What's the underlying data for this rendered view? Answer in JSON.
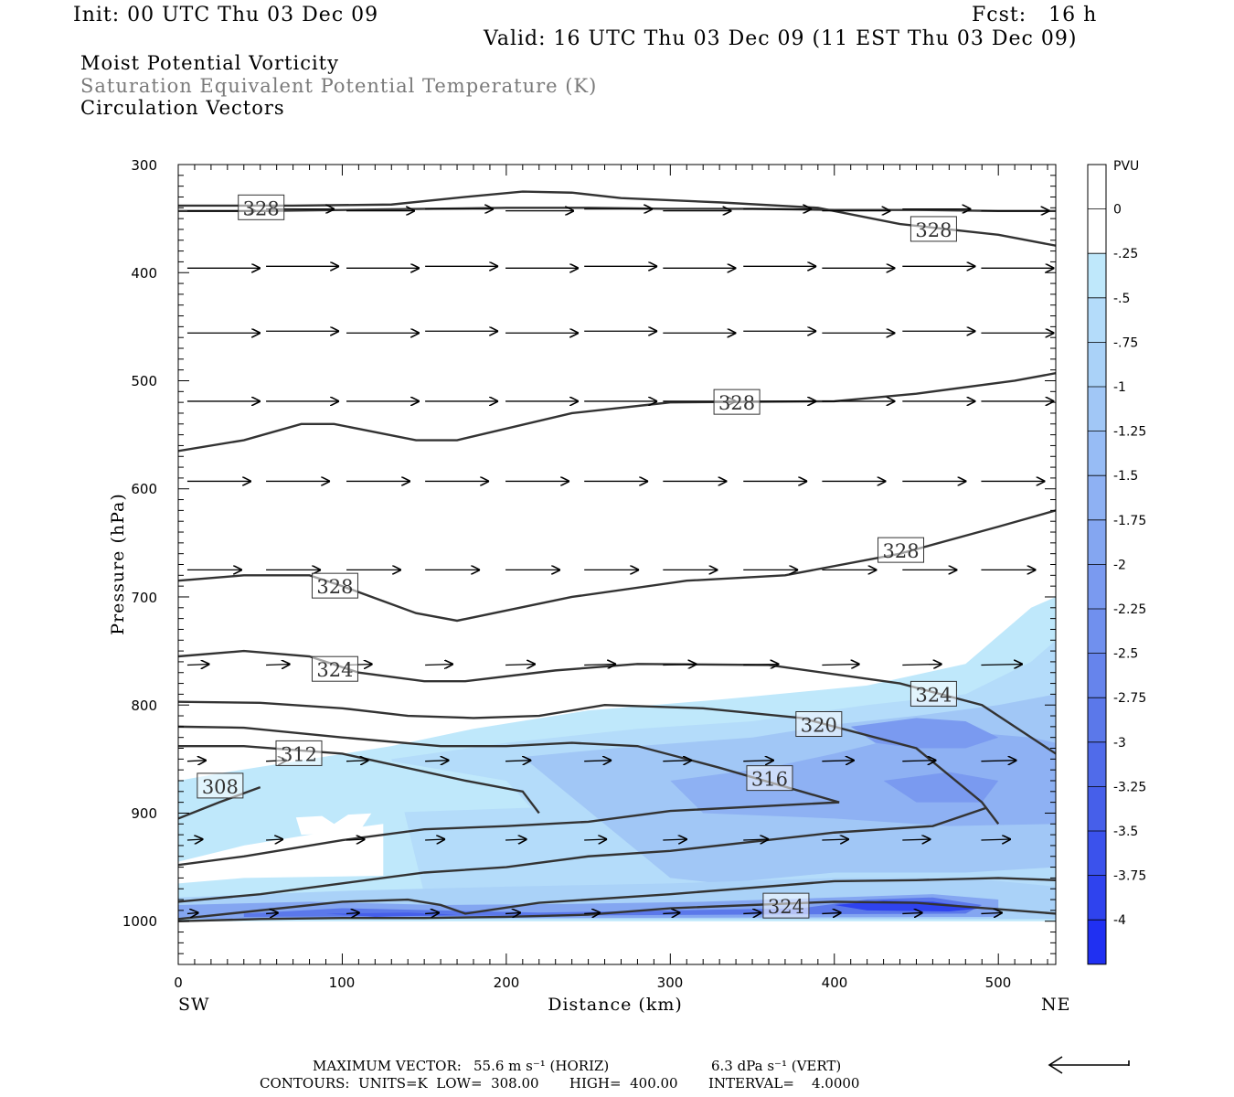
{
  "header": {
    "init": "Init: 00 UTC Thu 03 Dec 09",
    "fcst": "Fcst:   16 h",
    "valid": "Valid: 16 UTC Thu 03 Dec 09 (11 EST Thu 03 Dec 09)",
    "fields": [
      "Moist Potential Vorticity",
      "Saturation Equivalent Potential Temperature (K)",
      "Circulation Vectors"
    ]
  },
  "axes": {
    "ylabel": "Pressure (hPa)",
    "xlabel": "Distance (km)",
    "y_ticks": [
      "300",
      "400",
      "500",
      "600",
      "700",
      "800",
      "900",
      "1000"
    ],
    "x_ticks": [
      "0",
      "100",
      "200",
      "300",
      "400",
      "500"
    ],
    "left_end_label": "SW",
    "right_end_label": "NE"
  },
  "colorbar": {
    "unit": "PVU",
    "labels": [
      "0",
      "-.25",
      "-.5",
      "-.75",
      "-1",
      "-1.25",
      "-1.5",
      "-1.75",
      "-2",
      "-2.25",
      "-2.5",
      "-2.75",
      "-3",
      "-3.25",
      "-3.5",
      "-3.75",
      "-4"
    ],
    "colors": [
      "#ffffff",
      "#ffffff",
      "#bfe8fb",
      "#b4dcfa",
      "#aad2f8",
      "#a1c7f6",
      "#97bcf5",
      "#8eb1f3",
      "#84a6f1",
      "#7a9af0",
      "#7090ee",
      "#6684ec",
      "#5b78ea",
      "#506bea",
      "#465fea",
      "#3b52ec",
      "#2f43ee",
      "#2030f2"
    ]
  },
  "footer": {
    "line1_label": "MAXIMUM VECTOR:",
    "line1_horiz": "55.6 m s⁻¹ (HORIZ)",
    "line1_vert": "6.3 dPa s⁻¹ (VERT)",
    "line2": "CONTOURS:  UNITS=K  LOW=  308.00       HIGH=  400.00       INTERVAL=    4.0000"
  },
  "chart_data": {
    "type": "cross-section",
    "title": "Moist Potential Vorticity / Saturation Equivalent Potential Temperature (K) / Circulation Vectors",
    "xlabel": "Distance (km)",
    "ylabel": "Pressure (hPa)",
    "xlim": [
      0,
      535
    ],
    "ylim": [
      1040,
      300
    ],
    "contour_labels": [
      {
        "value": "328",
        "x": 50,
        "p": 340
      },
      {
        "value": "328",
        "x": 460,
        "p": 360
      },
      {
        "value": "328",
        "x": 340,
        "p": 520
      },
      {
        "value": "328",
        "x": 95,
        "p": 690
      },
      {
        "value": "328",
        "x": 440,
        "p": 657
      },
      {
        "value": "324",
        "x": 95,
        "p": 767
      },
      {
        "value": "324",
        "x": 460,
        "p": 790
      },
      {
        "value": "320",
        "x": 390,
        "p": 818
      },
      {
        "value": "316",
        "x": 360,
        "p": 868
      },
      {
        "value": "312",
        "x": 73,
        "p": 845
      },
      {
        "value": "308",
        "x": 25,
        "p": 875
      },
      {
        "value": "324",
        "x": 370,
        "p": 986
      }
    ],
    "theta_e_contours": [
      {
        "p": [
          338,
          338,
          337,
          330,
          325,
          326,
          331,
          335,
          340,
          355,
          365,
          375
        ],
        "x": [
          0,
          70,
          130,
          175,
          210,
          240,
          270,
          330,
          390,
          440,
          500,
          535
        ]
      },
      {
        "p": [
          343,
          343,
          342,
          341,
          340,
          340,
          341,
          341,
          342,
          342,
          343,
          343
        ],
        "x": [
          0,
          50,
          100,
          150,
          200,
          250,
          300,
          350,
          400,
          450,
          500,
          535
        ]
      },
      {
        "p": [
          565,
          555,
          540,
          540,
          555,
          555,
          530,
          520,
          519,
          512,
          500,
          493
        ],
        "x": [
          0,
          40,
          75,
          95,
          145,
          170,
          240,
          300,
          400,
          450,
          510,
          535
        ]
      },
      {
        "p": [
          685,
          680,
          680,
          690,
          715,
          722,
          700,
          685,
          680,
          660,
          635,
          620
        ],
        "x": [
          0,
          40,
          80,
          100,
          145,
          170,
          240,
          310,
          370,
          440,
          500,
          535
        ]
      },
      {
        "p": [
          755,
          750,
          755,
          770,
          778,
          778,
          768,
          762,
          763,
          780,
          800,
          845
        ],
        "x": [
          0,
          40,
          80,
          110,
          150,
          175,
          230,
          280,
          360,
          440,
          490,
          535
        ]
      },
      {
        "p": [
          797,
          798,
          803,
          810,
          812,
          810,
          800,
          803,
          812,
          840,
          890,
          910
        ],
        "x": [
          0,
          50,
          100,
          140,
          180,
          220,
          260,
          320,
          380,
          450,
          490,
          500
        ]
      },
      {
        "p": [
          820,
          821,
          830,
          838,
          838,
          835,
          838,
          858,
          880,
          890
        ],
        "x": [
          0,
          40,
          100,
          160,
          200,
          240,
          280,
          330,
          380,
          403
        ]
      },
      {
        "p": [
          838,
          838,
          845,
          870,
          880,
          900
        ],
        "x": [
          0,
          40,
          100,
          175,
          210,
          220
        ]
      },
      {
        "p": [
          905,
          890,
          876
        ],
        "x": [
          0,
          25,
          50
        ]
      },
      {
        "p": [
          948,
          940,
          925,
          915,
          912,
          908,
          898,
          890
        ],
        "x": [
          0,
          40,
          100,
          150,
          200,
          250,
          300,
          403
        ]
      },
      {
        "p": [
          982,
          975,
          965,
          955,
          950,
          940,
          935,
          918,
          912,
          895
        ],
        "x": [
          0,
          50,
          100,
          150,
          200,
          250,
          300,
          400,
          460,
          493
        ]
      },
      {
        "p": [
          998,
          990,
          982,
          980,
          985,
          993,
          983,
          975,
          963,
          962,
          960,
          962
        ],
        "x": [
          0,
          50,
          100,
          140,
          160,
          175,
          220,
          300,
          400,
          450,
          500,
          535
        ]
      },
      {
        "p": [
          1000,
          998,
          997,
          997,
          996,
          994,
          988,
          982,
          983,
          993
        ],
        "x": [
          0,
          50,
          100,
          150,
          200,
          250,
          300,
          400,
          450,
          535
        ]
      }
    ],
    "vector_rows_hPa": [
      342,
      395,
      455,
      519,
      593,
      675,
      763,
      852,
      925,
      993
    ],
    "vector_x_km": [
      10,
      58,
      107,
      155,
      204,
      252,
      300,
      349,
      397,
      446,
      494
    ],
    "pv_shading_note": "Negative MPV (-0.25 to -4 PVU) in lower troposphere, strongest (-4 PVU) near 990 hPa at 420-500 km"
  }
}
